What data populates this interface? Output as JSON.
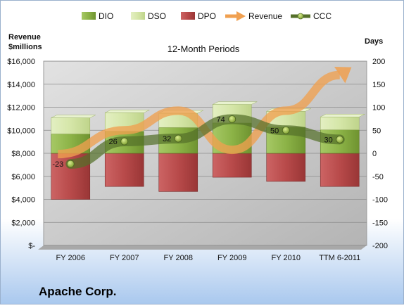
{
  "company": "Apache Corp.",
  "chart_data": {
    "type": "bar",
    "title": "12-Month Periods",
    "categories": [
      "FY 2006",
      "FY 2007",
      "FY 2008",
      "FY 2009",
      "FY 2010",
      "TTM 6-2011"
    ],
    "left_axis": {
      "label_line1": "Revenue",
      "label_line2": "$millions",
      "range": [
        0,
        16000
      ],
      "ticks": [
        "$-",
        "$2,000",
        "$4,000",
        "$6,000",
        "$8,000",
        "$10,000",
        "$12,000",
        "$14,000",
        "$16,000"
      ]
    },
    "right_axis": {
      "label": "Days",
      "range": [
        -200,
        200
      ],
      "ticks": [
        "-200",
        "-150",
        "-100",
        "-50",
        "0",
        "50",
        "100",
        "150",
        "200"
      ]
    },
    "series": [
      {
        "name": "DIO",
        "kind": "stacked-bar",
        "axis": "days",
        "values": [
          42,
          48,
          56,
          66,
          57,
          51
        ]
      },
      {
        "name": "DSO",
        "kind": "stacked-bar",
        "axis": "days",
        "values": [
          35,
          40,
          31,
          40,
          34,
          28
        ]
      },
      {
        "name": "DPO",
        "kind": "stacked-bar-negative",
        "axis": "days",
        "values": [
          -100,
          -72,
          -83,
          -52,
          -61,
          -72
        ]
      },
      {
        "name": "Revenue",
        "kind": "arrow-line",
        "axis": "revenue",
        "values": [
          8300,
          10000,
          11700,
          8300,
          11700,
          14800
        ]
      },
      {
        "name": "CCC",
        "kind": "line-markers",
        "axis": "days",
        "values": [
          -23,
          26,
          32,
          74,
          50,
          30
        ],
        "labels": [
          "-23",
          "26",
          "32",
          "74",
          "50",
          "30"
        ]
      }
    ],
    "colors": {
      "DIO": "#8cb347",
      "DSO": "#d5e6a8",
      "DPO": "#b84a4a",
      "Revenue": "#f0a050",
      "CCC": "#55702a",
      "plot_bg": "#c8c8c8"
    },
    "legend_position": "top",
    "grid": true
  }
}
